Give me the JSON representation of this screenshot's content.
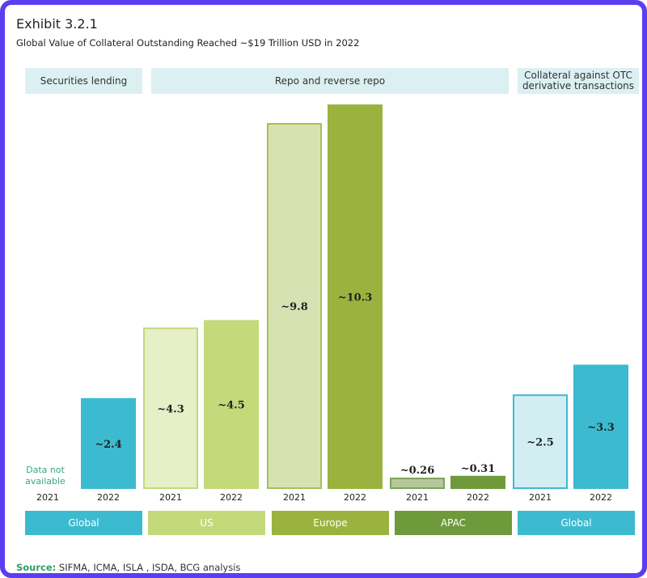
{
  "exhibit_label": "Exhibit 3.2.1",
  "chart_data": {
    "type": "bar",
    "title": "Global Value of Collateral Outstanding Reached ~$19 Trillion USD in 2022",
    "segments": [
      {
        "label": "Securities lending"
      },
      {
        "label": "Repo and reverse repo"
      },
      {
        "label": "Collateral against OTC derivative transactions"
      }
    ],
    "regions": [
      {
        "name": "Global",
        "segment": "Securities lending",
        "color": "#3cbad0",
        "bars": [
          {
            "year": "2021",
            "value": null,
            "label": "",
            "note": "Data not available"
          },
          {
            "year": "2022",
            "value": 2.4,
            "label": "~2.4",
            "fill": "#3cbad0",
            "stroke": "#3cbad0"
          }
        ]
      },
      {
        "name": "US",
        "segment": "Repo and reverse repo",
        "color": "#c3d97a",
        "bars": [
          {
            "year": "2021",
            "value": 4.3,
            "label": "~4.3",
            "fill": "#e6efc6",
            "stroke": "#c3d97a"
          },
          {
            "year": "2022",
            "value": 4.5,
            "label": "~4.5",
            "fill": "#c3d97a",
            "stroke": "#c3d97a"
          }
        ]
      },
      {
        "name": "Europe",
        "segment": "Repo and reverse repo",
        "color": "#9bb33e",
        "bars": [
          {
            "year": "2021",
            "value": 9.8,
            "label": "~9.8",
            "fill": "#d7e2b3",
            "stroke": "#a8bf55"
          },
          {
            "year": "2022",
            "value": 10.3,
            "label": "~10.3",
            "fill": "#9bb33e",
            "stroke": "#9bb33e"
          }
        ]
      },
      {
        "name": "APAC",
        "segment": "Repo and reverse repo",
        "color": "#6f9a3c",
        "bars": [
          {
            "year": "2021",
            "value": 0.26,
            "label": "~0.26",
            "fill": "#b4c99a",
            "stroke": "#7fa45a"
          },
          {
            "year": "2022",
            "value": 0.31,
            "label": "~0.31",
            "fill": "#6f9a3c",
            "stroke": "#6f9a3c"
          }
        ]
      },
      {
        "name": "Global",
        "segment": "Collateral against OTC derivative transactions",
        "color": "#3cbad0",
        "bars": [
          {
            "year": "2021",
            "value": 2.5,
            "label": "~2.5",
            "fill": "#d3eef3",
            "stroke": "#3cbad0"
          },
          {
            "year": "2022",
            "value": 3.3,
            "label": "~3.3",
            "fill": "#3cbad0",
            "stroke": "#3cbad0"
          }
        ]
      }
    ],
    "ylim": [
      0,
      10.3
    ],
    "xlabel": "",
    "ylabel": ""
  },
  "source": {
    "label": "Source:",
    "text": "SIFMA, ICMA, ISLA , ISDA, BCG analysis"
  }
}
